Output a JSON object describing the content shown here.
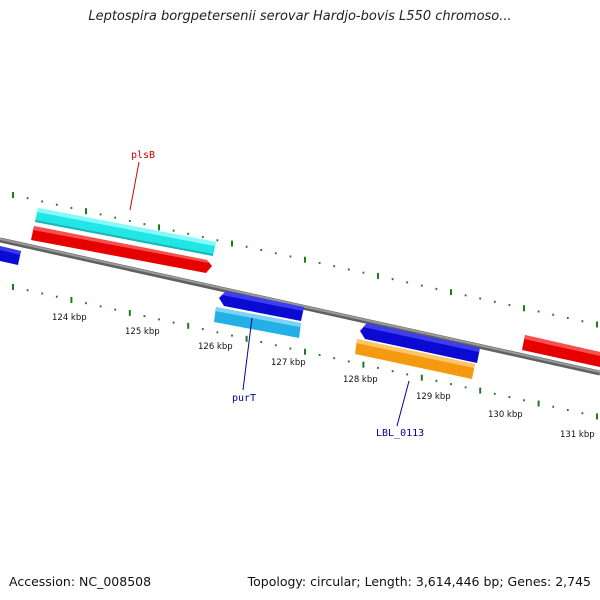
{
  "title": "Leptospira borgpetersenii serovar Hardjo-bovis L550 chromoso...",
  "footer": {
    "accession": "Accession: NC_008508",
    "summary": "Topology: circular; Length: 3,614,446 bp; Genes: 2,745"
  },
  "ruler": {
    "labels": [
      "124 kbp",
      "125 kbp",
      "126 kbp",
      "127 kbp",
      "128 kbp",
      "129 kbp",
      "130 kbp",
      "131 kbp"
    ]
  },
  "genes": [
    {
      "name": "plsB",
      "label_color": "#cc0000"
    },
    {
      "name": "purT",
      "label_color": "#000099"
    },
    {
      "name": "LBL_0113",
      "label_color": "#000099"
    }
  ],
  "colors": {
    "backbone": "#808080",
    "tick": "#1e7a1e",
    "red": "#e60000",
    "blue": "#0a0ad2",
    "cyan": "#22e6e6",
    "lightblue": "#22b0e6",
    "orange": "#f59a10"
  }
}
